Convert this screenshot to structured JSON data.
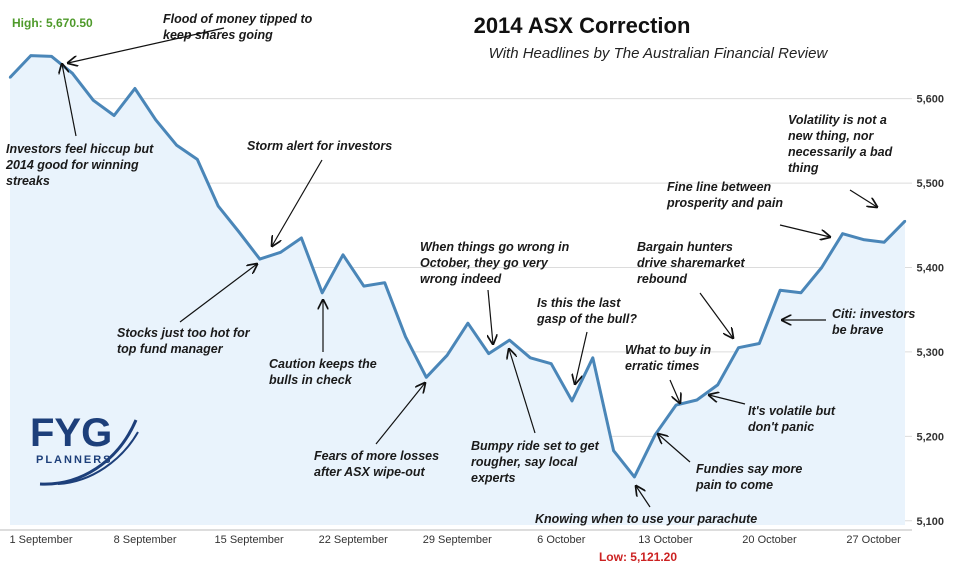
{
  "chart_data": {
    "type": "line",
    "title": "2014 ASX Correction",
    "subtitle": "With Headlines by The Australian Financial Review",
    "high_label": "High: 5,670.50",
    "low_label": "Low: 5,121.20",
    "x_ticks": [
      "1 September",
      "8 September",
      "15 September",
      "22 September",
      "29 September",
      "6 October",
      "13 October",
      "20 October",
      "27 October"
    ],
    "y_ticks": [
      "5,600",
      "5,500",
      "5,400",
      "5,300",
      "5,200",
      "5,100"
    ],
    "y_tick_values": [
      5600,
      5500,
      5400,
      5300,
      5200,
      5100
    ],
    "ylim": [
      5095,
      5705
    ],
    "series": [
      {
        "values": [
          5625,
          5651,
          5650,
          5630,
          5598,
          5580,
          5612,
          5575,
          5545,
          5528,
          5473,
          5442,
          5410,
          5418,
          5435,
          5370,
          5415,
          5378,
          5382,
          5318,
          5270,
          5296,
          5334,
          5298,
          5314,
          5293,
          5286,
          5242,
          5293,
          5183,
          5152,
          5202,
          5237,
          5243,
          5261,
          5305,
          5310,
          5373,
          5370,
          5400,
          5440,
          5433,
          5430,
          5455
        ]
      }
    ],
    "grid": true,
    "legend": "none",
    "annotations": [
      {
        "lines": [
          "Flood of money tipped to",
          "keep shares going"
        ],
        "point": 2
      },
      {
        "lines": [
          "Investors feel hiccup but",
          "2014 good for winning",
          "streaks"
        ],
        "point": 1
      },
      {
        "lines": [
          "Storm alert for investors"
        ],
        "point": 13
      },
      {
        "lines": [
          "Stocks just too hot for",
          "top fund manager"
        ],
        "point": 12
      },
      {
        "lines": [
          "Caution keeps the",
          "bulls in check"
        ],
        "point": 15
      },
      {
        "lines": [
          "Fears of more losses",
          "after ASX wipe-out"
        ],
        "point": 20
      },
      {
        "lines": [
          "When things go wrong in",
          "October, they go very",
          "wrong indeed"
        ],
        "point": 23
      },
      {
        "lines": [
          "Is this the last",
          "gasp of the bull?"
        ],
        "point": 27
      },
      {
        "lines": [
          "Bumpy ride set to get",
          "rougher, say local",
          "experts"
        ],
        "point": 24
      },
      {
        "lines": [
          "Knowing when to use your parachute"
        ],
        "point": 30
      },
      {
        "lines": [
          "What to buy in",
          "erratic times"
        ],
        "point": 33
      },
      {
        "lines": [
          "Fundies say more",
          "pain to come"
        ],
        "point": 31
      },
      {
        "lines": [
          "Bargain hunters",
          "drive sharemarket",
          "rebound"
        ],
        "point": 35
      },
      {
        "lines": [
          "It's volatile but",
          "don't panic"
        ],
        "point": 34
      },
      {
        "lines": [
          "Fine line between",
          "prosperity and pain"
        ],
        "point": 40
      },
      {
        "lines": [
          "Volatility is not a",
          "new thing, nor",
          "necessarily a bad",
          "thing"
        ],
        "point": 42
      },
      {
        "lines": [
          "Citi: investors",
          "be brave"
        ],
        "point": 37
      }
    ]
  },
  "logo": {
    "main": "FYG",
    "sub": "PLANNERS"
  },
  "colors": {
    "line": "#4a86b8",
    "fill": "#e9f3fc",
    "grid": "#dcdcdc"
  }
}
